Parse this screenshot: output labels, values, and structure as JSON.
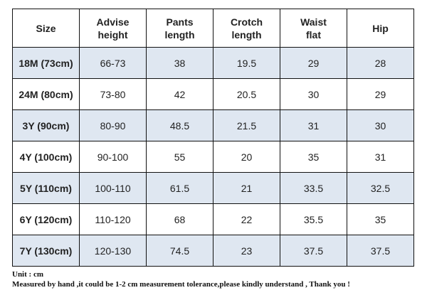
{
  "table": {
    "headers": [
      [
        "Size",
        ""
      ],
      [
        "Advise",
        "height"
      ],
      [
        "Pants",
        "length"
      ],
      [
        "Crotch",
        "length"
      ],
      [
        "Waist",
        "flat"
      ],
      [
        "Hip",
        ""
      ]
    ],
    "rows": [
      [
        "18M (73cm)",
        "66-73",
        "38",
        "19.5",
        "29",
        "28"
      ],
      [
        "24M (80cm)",
        "73-80",
        "42",
        "20.5",
        "30",
        "29"
      ],
      [
        "3Y (90cm)",
        "80-90",
        "48.5",
        "21.5",
        "31",
        "30"
      ],
      [
        "4Y (100cm)",
        "90-100",
        "55",
        "20",
        "35",
        "31"
      ],
      [
        "5Y (110cm)",
        "100-110",
        "61.5",
        "21",
        "33.5",
        "32.5"
      ],
      [
        "6Y (120cm)",
        "110-120",
        "68",
        "22",
        "35.5",
        "35"
      ],
      [
        "7Y (130cm)",
        "120-130",
        "74.5",
        "23",
        "37.5",
        "37.5"
      ]
    ],
    "row_shading": [
      "alt",
      "plain",
      "alt",
      "plain",
      "alt",
      "plain",
      "alt"
    ]
  },
  "footer": {
    "unit": "Unit : cm",
    "note": "Measured by hand ,it could be 1-2 cm measurement tolerance,please kindly understand , Thank you !"
  },
  "colors": {
    "shaded_row": "#dfe7f1",
    "border": "#111111"
  }
}
